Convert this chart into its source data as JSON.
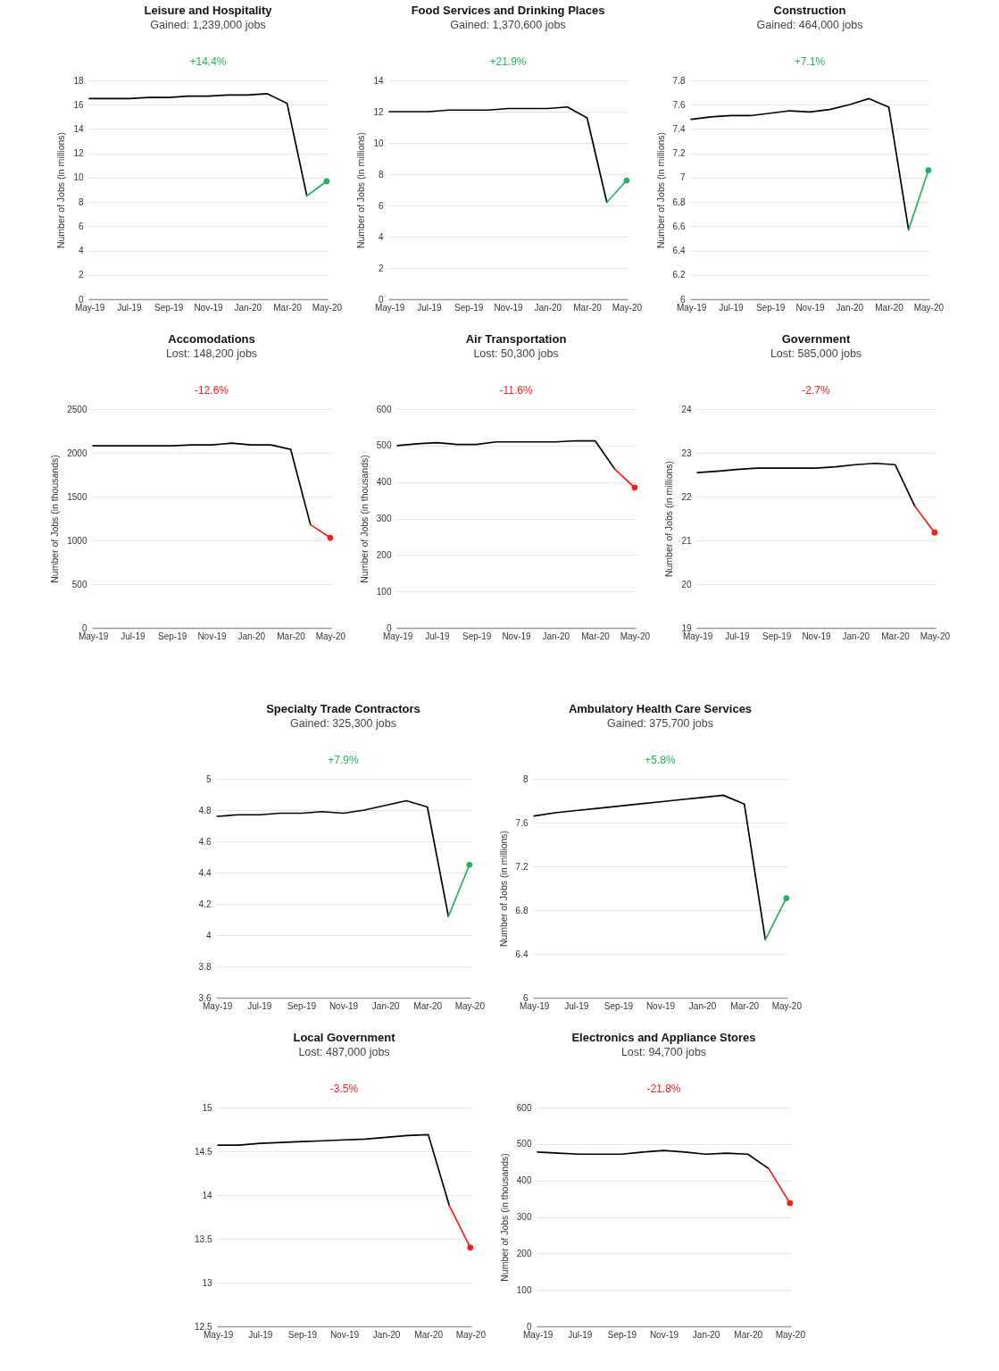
{
  "chart_data": [
    {
      "type": "line",
      "title": "Leisure and Hospitality",
      "subtitle": "Gained: 1,239,000 jobs",
      "annotations": [
        "+14.4%"
      ],
      "ylabel": "Number of Jobs (in millions)",
      "categories": [
        "May-19",
        null,
        "Jul-19",
        null,
        "Sep-19",
        null,
        "Nov-19",
        null,
        "Jan-20",
        null,
        "Mar-20",
        null,
        "May-20"
      ],
      "ylim": [
        0,
        18
      ],
      "yticks": [
        0,
        2,
        4,
        6,
        8,
        10,
        12,
        14,
        16,
        18
      ],
      "grid": "y",
      "series": [
        {
          "color": "#000000",
          "values": [
            16.5,
            16.5,
            16.5,
            16.6,
            16.6,
            16.7,
            16.7,
            16.8,
            16.8,
            16.9,
            16.1,
            8.5,
            null
          ]
        },
        {
          "color": "#22b35e",
          "values": [
            null,
            null,
            null,
            null,
            null,
            null,
            null,
            null,
            null,
            null,
            null,
            8.5,
            9.7
          ]
        },
        {
          "type": "scatter",
          "color": "#22b35e",
          "values": [
            null,
            null,
            null,
            null,
            null,
            null,
            null,
            null,
            null,
            null,
            null,
            null,
            9.7
          ]
        }
      ]
    },
    {
      "type": "line",
      "title": "Food Services and Drinking Places",
      "subtitle": "Gained: 1,370,600 jobs",
      "annotations": [
        "+21.9%"
      ],
      "ylabel": "Number of Jobs (in millions)",
      "categories": [
        "May-19",
        null,
        "Jul-19",
        null,
        "Sep-19",
        null,
        "Nov-19",
        null,
        "Jan-20",
        null,
        "Mar-20",
        null,
        "May-20"
      ],
      "ylim": [
        0,
        14
      ],
      "yticks": [
        0,
        2,
        4,
        6,
        8,
        10,
        12,
        14
      ],
      "grid": "y",
      "series": [
        {
          "color": "#000000",
          "values": [
            12.0,
            12.0,
            12.0,
            12.1,
            12.1,
            12.1,
            12.2,
            12.2,
            12.2,
            12.3,
            11.6,
            6.2,
            null
          ]
        },
        {
          "color": "#22b35e",
          "values": [
            null,
            null,
            null,
            null,
            null,
            null,
            null,
            null,
            null,
            null,
            null,
            6.2,
            7.6
          ]
        },
        {
          "type": "scatter",
          "color": "#22b35e",
          "values": [
            null,
            null,
            null,
            null,
            null,
            null,
            null,
            null,
            null,
            null,
            null,
            null,
            7.6
          ]
        }
      ]
    },
    {
      "type": "line",
      "title": "Construction",
      "subtitle": "Gained: 464,000 jobs",
      "annotations": [
        "+7.1%"
      ],
      "ylabel": "Number of Jobs (in millions)",
      "categories": [
        "May-19",
        null,
        "Jul-19",
        null,
        "Sep-19",
        null,
        "Nov-19",
        null,
        "Jan-20",
        null,
        "Mar-20",
        null,
        "May-20"
      ],
      "ylim": [
        6,
        7.8
      ],
      "yticks": [
        6,
        6.2,
        6.4,
        6.6,
        6.8,
        7,
        7.2,
        7.4,
        7.6,
        7.8
      ],
      "grid": "y",
      "series": [
        {
          "color": "#000000",
          "values": [
            7.48,
            7.5,
            7.51,
            7.51,
            7.53,
            7.55,
            7.54,
            7.56,
            7.6,
            7.65,
            7.58,
            6.57,
            null
          ]
        },
        {
          "color": "#22b35e",
          "values": [
            null,
            null,
            null,
            null,
            null,
            null,
            null,
            null,
            null,
            null,
            null,
            6.57,
            7.06
          ]
        },
        {
          "type": "scatter",
          "color": "#22b35e",
          "values": [
            null,
            null,
            null,
            null,
            null,
            null,
            null,
            null,
            null,
            null,
            null,
            null,
            7.06
          ]
        }
      ]
    },
    {
      "type": "line",
      "title": "Accomodations",
      "subtitle": "Lost: 148,200 jobs",
      "annotations": [
        "-12.6%"
      ],
      "ylabel": "Number of Jobs (in thousands)",
      "categories": [
        "May-19",
        null,
        "Jul-19",
        null,
        "Sep-19",
        null,
        "Nov-19",
        null,
        "Jan-20",
        null,
        "Mar-20",
        null,
        "May-20"
      ],
      "ylim": [
        0,
        2500
      ],
      "yticks": [
        0,
        500,
        1000,
        1500,
        2000,
        2500
      ],
      "grid": "y",
      "series": [
        {
          "color": "#000000",
          "values": [
            2080,
            2080,
            2080,
            2080,
            2080,
            2090,
            2090,
            2110,
            2090,
            2090,
            2040,
            1180,
            null
          ]
        },
        {
          "color": "#ff1a1a",
          "values": [
            null,
            null,
            null,
            null,
            null,
            null,
            null,
            null,
            null,
            null,
            null,
            1180,
            1030
          ]
        },
        {
          "type": "scatter",
          "color": "#ff1a1a",
          "values": [
            null,
            null,
            null,
            null,
            null,
            null,
            null,
            null,
            null,
            null,
            null,
            null,
            1030
          ]
        }
      ]
    },
    {
      "type": "line",
      "title": "Air Transportation",
      "subtitle": "Lost: 50,300 jobs",
      "annotations": [
        "-11.6%"
      ],
      "ylabel": "Number of Jobs (in thousands)",
      "categories": [
        "May-19",
        null,
        "Jul-19",
        null,
        "Sep-19",
        null,
        "Nov-19",
        null,
        "Jan-20",
        null,
        "Mar-20",
        null,
        "May-20"
      ],
      "ylim": [
        0,
        600
      ],
      "yticks": [
        0,
        100,
        200,
        300,
        400,
        500,
        600
      ],
      "grid": "y",
      "series": [
        {
          "color": "#000000",
          "values": [
            500,
            505,
            508,
            503,
            503,
            510,
            510,
            510,
            510,
            513,
            513,
            435,
            null
          ]
        },
        {
          "color": "#ff1a1a",
          "values": [
            null,
            null,
            null,
            null,
            null,
            null,
            null,
            null,
            null,
            null,
            null,
            435,
            385
          ]
        },
        {
          "type": "scatter",
          "color": "#ff1a1a",
          "values": [
            null,
            null,
            null,
            null,
            null,
            null,
            null,
            null,
            null,
            null,
            null,
            null,
            385
          ]
        }
      ]
    },
    {
      "type": "line",
      "title": "Government",
      "subtitle": "Lost: 585,000 jobs",
      "annotations": [
        "-2.7%"
      ],
      "ylabel": "Number of Jobs (in millions)",
      "categories": [
        "May-19",
        null,
        "Jul-19",
        null,
        "Sep-19",
        null,
        "Nov-19",
        null,
        "Jan-20",
        null,
        "Mar-20",
        null,
        "May-20"
      ],
      "ylim": [
        19,
        24
      ],
      "yticks": [
        19,
        20,
        21,
        22,
        23,
        24
      ],
      "grid": "y",
      "series": [
        {
          "color": "#000000",
          "values": [
            22.55,
            22.58,
            22.62,
            22.65,
            22.65,
            22.65,
            22.65,
            22.68,
            22.73,
            22.76,
            22.73,
            21.78,
            null
          ]
        },
        {
          "color": "#ff1a1a",
          "values": [
            null,
            null,
            null,
            null,
            null,
            null,
            null,
            null,
            null,
            null,
            null,
            21.78,
            21.18
          ]
        },
        {
          "type": "scatter",
          "color": "#ff1a1a",
          "values": [
            null,
            null,
            null,
            null,
            null,
            null,
            null,
            null,
            null,
            null,
            null,
            null,
            21.18
          ]
        }
      ]
    },
    {
      "type": "line",
      "title": "Specialty Trade Contractors",
      "subtitle": "Gained: 325,300 jobs",
      "annotations": [
        "+7.9%"
      ],
      "categories": [
        "May-19",
        null,
        "Jul-19",
        null,
        "Sep-19",
        null,
        "Nov-19",
        null,
        "Jan-20",
        null,
        "Mar-20",
        null,
        "May-20"
      ],
      "ylim": [
        3.6,
        5
      ],
      "yticks": [
        3.6,
        3.8,
        4,
        4.2,
        4.4,
        4.6,
        4.8,
        5
      ],
      "grid": "y",
      "series": [
        {
          "color": "#000000",
          "values": [
            4.76,
            4.77,
            4.77,
            4.78,
            4.78,
            4.79,
            4.78,
            4.8,
            4.83,
            4.86,
            4.82,
            4.12,
            null
          ]
        },
        {
          "color": "#22b35e",
          "values": [
            null,
            null,
            null,
            null,
            null,
            null,
            null,
            null,
            null,
            null,
            null,
            4.12,
            4.45
          ]
        },
        {
          "type": "scatter",
          "color": "#22b35e",
          "values": [
            null,
            null,
            null,
            null,
            null,
            null,
            null,
            null,
            null,
            null,
            null,
            null,
            4.45
          ]
        }
      ]
    },
    {
      "type": "line",
      "title": "Ambulatory Health Care Services",
      "subtitle": "Gained: 375,700 jobs",
      "annotations": [
        "+5.8%"
      ],
      "ylabel": "Number of Jobs (in millions)",
      "categories": [
        "May-19",
        null,
        "Jul-19",
        null,
        "Sep-19",
        null,
        "Nov-19",
        null,
        "Jan-20",
        null,
        "Mar-20",
        null,
        "May-20"
      ],
      "ylim": [
        6,
        8
      ],
      "yticks": [
        6,
        6.4,
        6.8,
        7.2,
        7.6,
        8
      ],
      "grid": "y",
      "series": [
        {
          "color": "#000000",
          "values": [
            7.66,
            7.69,
            7.71,
            7.73,
            7.75,
            7.77,
            7.79,
            7.81,
            7.83,
            7.85,
            7.77,
            6.53,
            null
          ]
        },
        {
          "color": "#22b35e",
          "values": [
            null,
            null,
            null,
            null,
            null,
            null,
            null,
            null,
            null,
            null,
            null,
            6.53,
            6.91
          ]
        },
        {
          "type": "scatter",
          "color": "#22b35e",
          "values": [
            null,
            null,
            null,
            null,
            null,
            null,
            null,
            null,
            null,
            null,
            null,
            null,
            6.91
          ]
        }
      ]
    },
    {
      "type": "line",
      "title": "Local Government",
      "subtitle": "Lost: 487,000 jobs",
      "annotations": [
        "-3.5%"
      ],
      "categories": [
        "May-19",
        null,
        "Jul-19",
        null,
        "Sep-19",
        null,
        "Nov-19",
        null,
        "Jan-20",
        null,
        "Mar-20",
        null,
        "May-20"
      ],
      "ylim": [
        12.5,
        15
      ],
      "yticks": [
        12.5,
        13,
        13.5,
        14,
        14.5,
        15
      ],
      "grid": "y",
      "series": [
        {
          "color": "#000000",
          "values": [
            14.57,
            14.57,
            14.59,
            14.6,
            14.61,
            14.62,
            14.63,
            14.64,
            14.66,
            14.68,
            14.69,
            13.88,
            null
          ]
        },
        {
          "color": "#ff1a1a",
          "values": [
            null,
            null,
            null,
            null,
            null,
            null,
            null,
            null,
            null,
            null,
            null,
            13.88,
            13.4
          ]
        },
        {
          "type": "scatter",
          "color": "#ff1a1a",
          "values": [
            null,
            null,
            null,
            null,
            null,
            null,
            null,
            null,
            null,
            null,
            null,
            null,
            13.4
          ]
        }
      ]
    },
    {
      "type": "line",
      "title": "Electronics and Appliance Stores",
      "subtitle": "Lost: 94,700 jobs",
      "annotations": [
        "-21.8%"
      ],
      "ylabel": "Number of Jobs (in thousands)",
      "categories": [
        "May-19",
        null,
        "Jul-19",
        null,
        "Sep-19",
        null,
        "Nov-19",
        null,
        "Jan-20",
        null,
        "Mar-20",
        null,
        "May-20"
      ],
      "ylim": [
        0,
        600
      ],
      "yticks": [
        0,
        100,
        200,
        300,
        400,
        500,
        600
      ],
      "grid": "y",
      "series": [
        {
          "color": "#000000",
          "values": [
            478,
            475,
            472,
            472,
            472,
            478,
            482,
            478,
            472,
            475,
            472,
            432,
            null
          ]
        },
        {
          "color": "#ff1a1a",
          "values": [
            null,
            null,
            null,
            null,
            null,
            null,
            null,
            null,
            null,
            null,
            null,
            432,
            338
          ]
        },
        {
          "type": "scatter",
          "color": "#ff1a1a",
          "values": [
            null,
            null,
            null,
            null,
            null,
            null,
            null,
            null,
            null,
            null,
            null,
            null,
            338
          ]
        }
      ]
    }
  ]
}
